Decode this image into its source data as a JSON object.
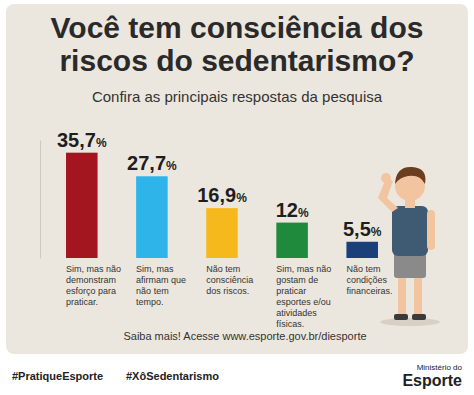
{
  "chart_data": {
    "type": "bar",
    "title": "Você tem consciência dos riscos do sedentarismo?",
    "subtitle": "Confira as principais respostas da pesquisa",
    "categories": [
      "Sim, mas não demonstram esforço para praticar.",
      "Sim, mas afirmam que não tem tempo.",
      "Não tem consciência dos riscos.",
      "Sim, mas não gostam de praticar esportes e/ou atividades físicas.",
      "Não tem condições financeiras."
    ],
    "values": [
      35.7,
      27.7,
      16.9,
      12,
      5.5
    ],
    "value_labels": [
      "35,7%",
      "27,7%",
      "16,9%",
      "12%",
      "5,5%"
    ],
    "colors": [
      "#a3161f",
      "#2fb4ea",
      "#f6b91d",
      "#1f8a3c",
      "#1b3f7b"
    ],
    "ylim": [
      0,
      40
    ],
    "data_labels": true,
    "tick_labels": false,
    "grid": false,
    "annotations": [
      "Saiba mais! Acesse www.esporte.gov.br/diesporte",
      "#PratiqueEsporte",
      "#XôSedentarismo",
      "Ministério do",
      "Esporte"
    ]
  }
}
